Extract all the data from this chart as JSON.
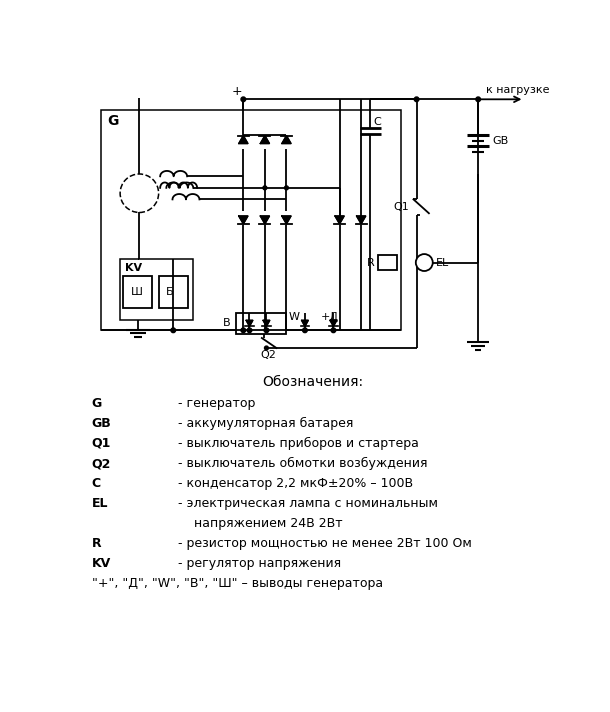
{
  "bg_color": "#ffffff",
  "line_color": "#000000",
  "legend_title": "Обозначения:",
  "legend_items": [
    [
      "G",
      "- генератор"
    ],
    [
      "GB",
      "- аккумуляторная батарея"
    ],
    [
      "Q1",
      "- выключатель приборов и стартера"
    ],
    [
      "Q2",
      "- выключатель обмотки возбуждения"
    ],
    [
      "C",
      "- конденсатор 2,2 мкФ±20% – 100В"
    ],
    [
      "EL",
      "- электрическая лампа с номинальным"
    ],
    [
      "",
      "    напряжением 24В 2Вт"
    ],
    [
      "R",
      "- резистор мощностью не менее 2Вт 100 Ом"
    ],
    [
      "KV",
      "- регулятор напряжения"
    ]
  ],
  "last_line": "«+», «Д», «W», «В», «Ш» – выводы генератора",
  "load_label": "к нагрузке"
}
